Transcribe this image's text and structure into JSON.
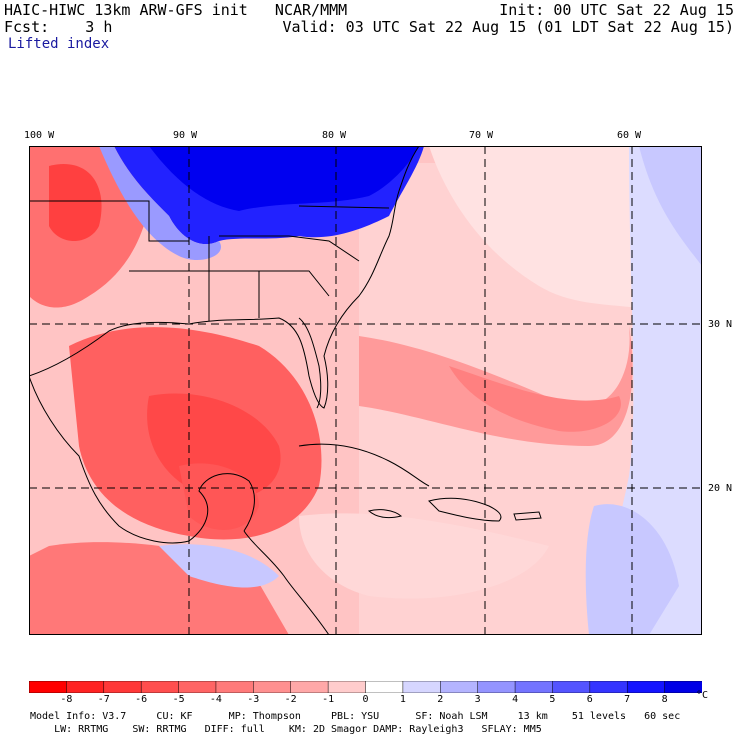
{
  "header": {
    "model_line": "HAIC-HIWC 13km ARW-GFS init   NCAR/MMM",
    "init": "Init: 00 UTC Sat 22 Aug 15",
    "fcst": "Fcst:    3 h",
    "valid": "Valid: 03 UTC Sat 22 Aug 15 (01 LDT Sat 22 Aug 15)",
    "field": "Lifted index"
  },
  "map": {
    "lon_labels": [
      "100 W",
      "90 W",
      "80 W",
      "70 W",
      "60 W"
    ],
    "lat_labels": [
      "30 N",
      "20 N"
    ],
    "colors": {
      "strong_neg": "#ff2020",
      "mod_neg": "#ff6a6a",
      "weak_neg": "#ffb4b4",
      "near_zero": "#ffe6e6",
      "weak_pos": "#c8c8ff",
      "strong_pos": "#0000ff"
    }
  },
  "colorbar": {
    "ticks": [
      "-8",
      "-7",
      "-6",
      "-5",
      "-4",
      "-3",
      "-2",
      "-1",
      "0",
      "1",
      "2",
      "3",
      "4",
      "5",
      "6",
      "7",
      "8"
    ],
    "unit": "°C",
    "colors": [
      "#ff0000",
      "#ff2222",
      "#ff3838",
      "#ff4e4e",
      "#ff6464",
      "#ff7a7a",
      "#ff9090",
      "#ffa8a8",
      "#ffcccc",
      "#ffffff",
      "#d6d6ff",
      "#b4b4ff",
      "#9494ff",
      "#7474ff",
      "#5454ff",
      "#3434ff",
      "#1414ff",
      "#0000e6"
    ]
  },
  "footer": {
    "line1": "Model Info: V3.7     CU: KF      MP: Thompson     PBL: YSU      SF: Noah LSM     13 km    51 levels   60 sec",
    "line2": "    LW: RRTMG    SW: RRTMG   DIFF: full    KM: 2D Smagor DAMP: Rayleigh3   SFLAY: MM5"
  }
}
